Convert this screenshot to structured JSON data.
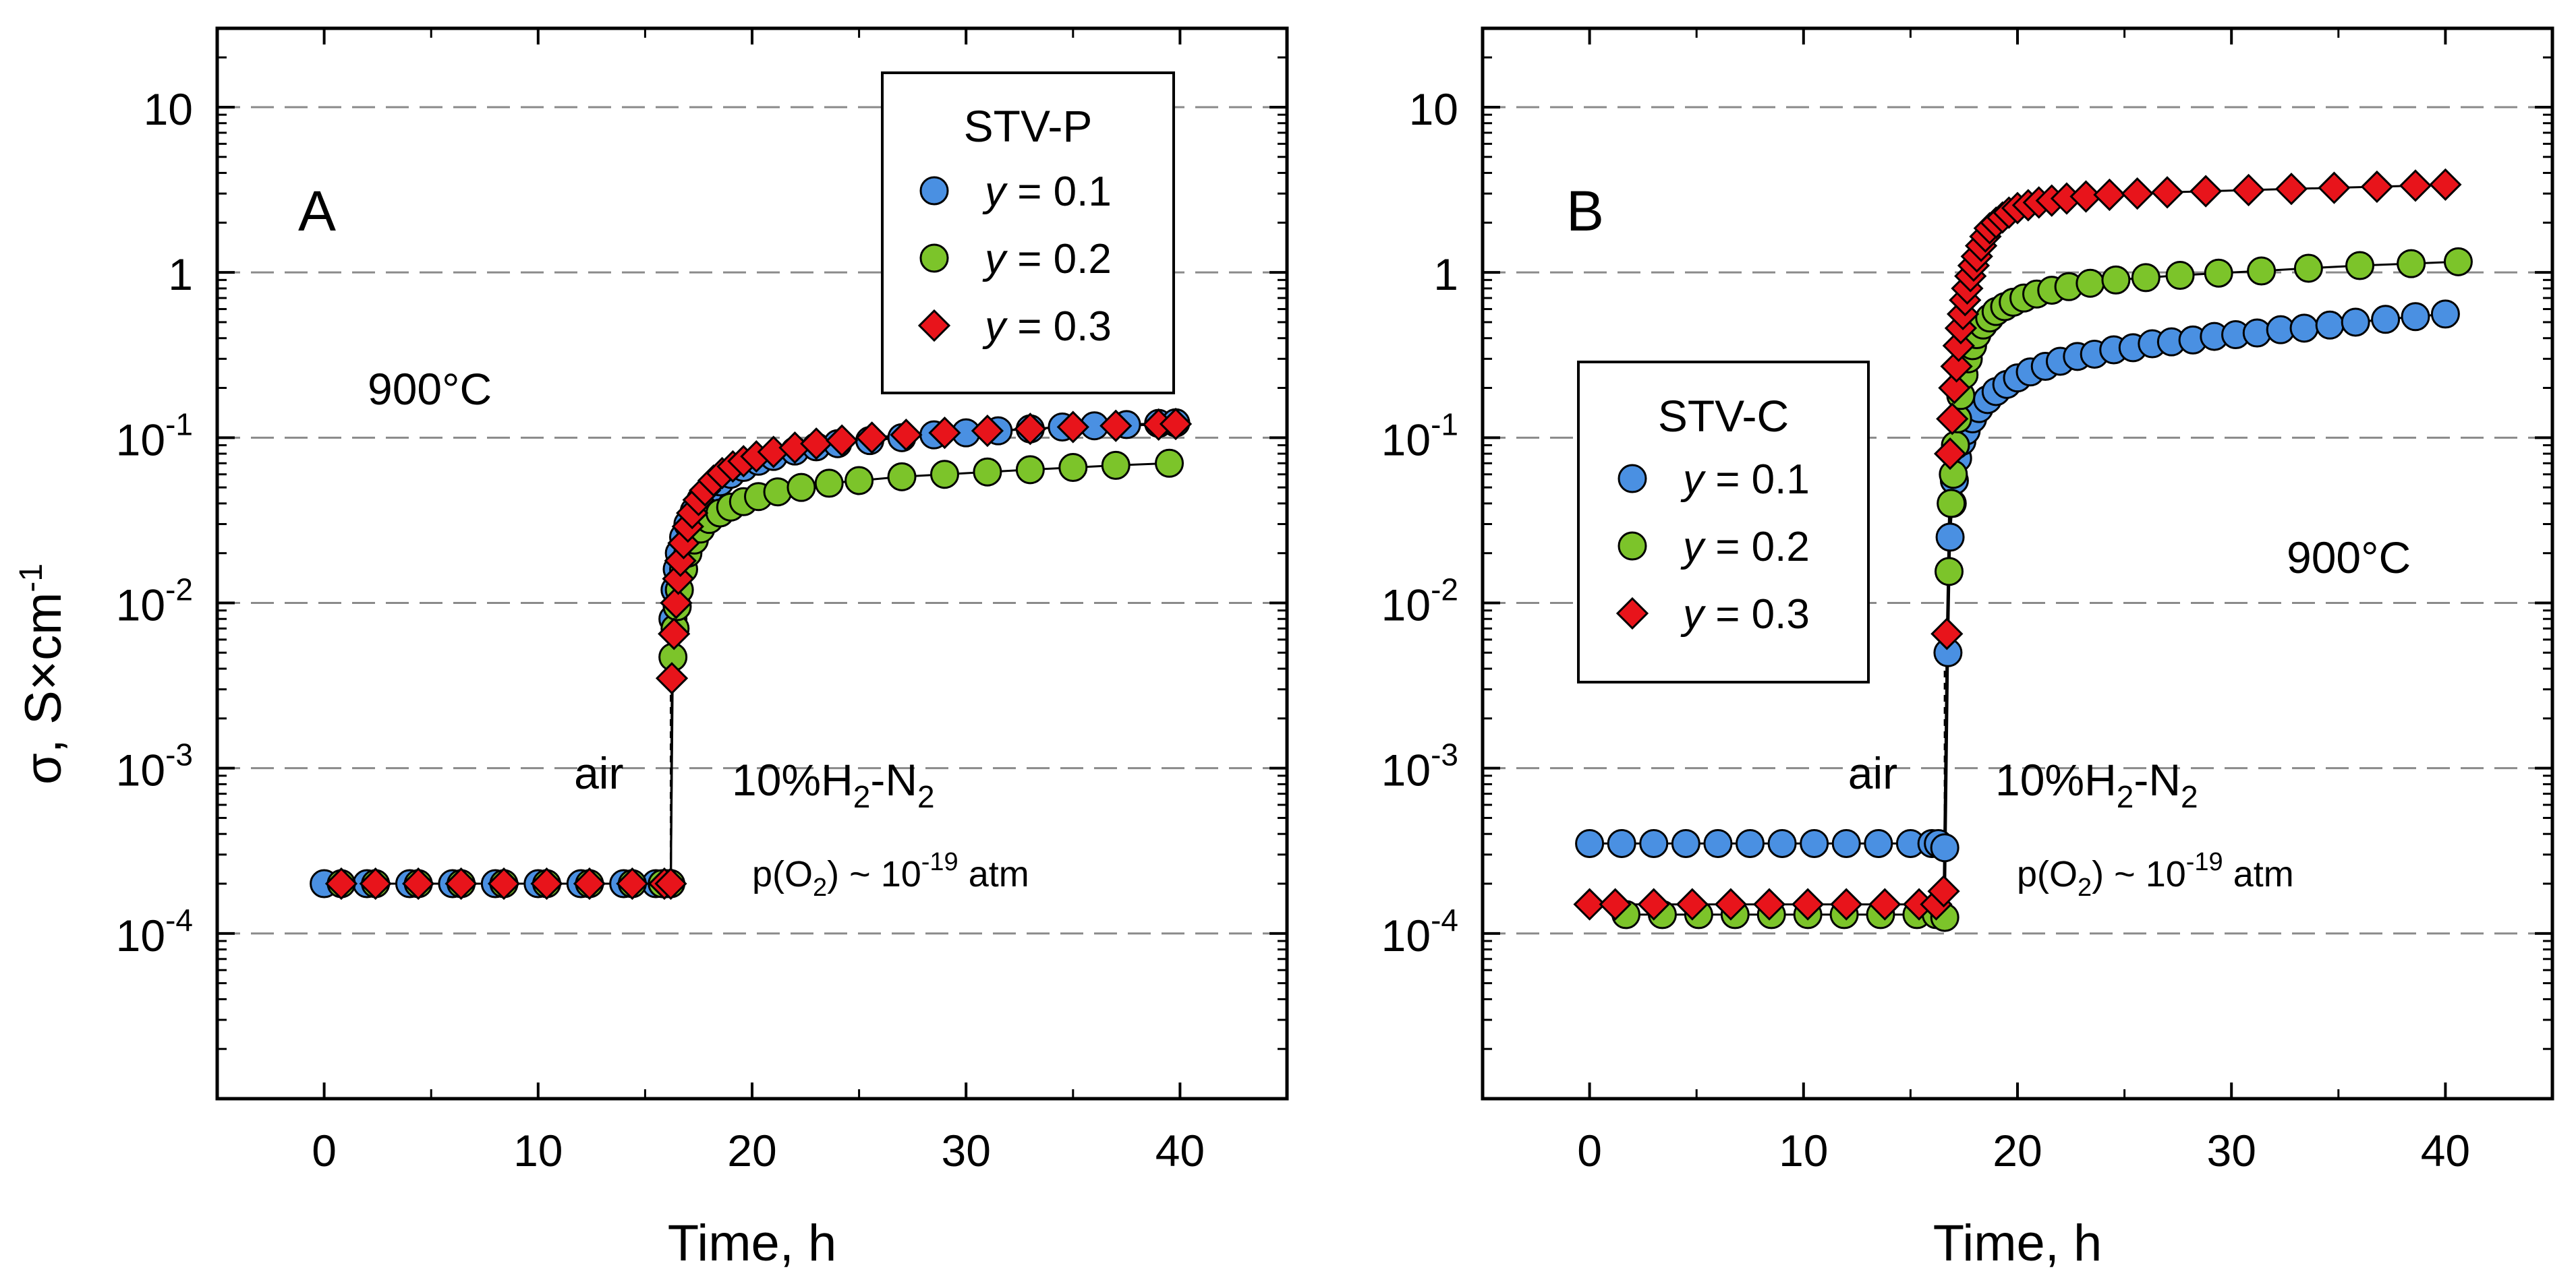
{
  "y_axis_title": "σ, S×cm",
  "y_axis_title_sup": "-1",
  "chart_data": [
    {
      "type": "scatter",
      "panel_label": "A",
      "temperature": "900°C",
      "xlabel": "Time, h",
      "ylabel": "σ, S×cm-1",
      "yscale": "log",
      "xlim": [
        -5,
        45
      ],
      "ylim": [
        1e-05,
        30
      ],
      "x_ticks": [
        "0",
        "10",
        "20",
        "30",
        "40"
      ],
      "y_ticks": [
        {
          "base": "10",
          "exp": "-4"
        },
        {
          "base": "10",
          "exp": "-3"
        },
        {
          "base": "10",
          "exp": "-2"
        },
        {
          "base": "10",
          "exp": "-1"
        },
        {
          "base": "1",
          "exp": ""
        },
        {
          "base": "10",
          "exp": ""
        }
      ],
      "gridlines": "horizontal dashed at decades",
      "switch_time": 16.2,
      "switch_annotations": {
        "left": "air",
        "right_main": "10%H",
        "right_sub1": "2",
        "right_mid": "-N",
        "right_sub2": "2",
        "po2_main": "p(O",
        "po2_sub": "2",
        "po2_mid": ") ~ 10",
        "po2_sup": "-19",
        "po2_end": " atm"
      },
      "legend": {
        "title": "STV-P",
        "entries": [
          {
            "y_italic": "y",
            "label": " = 0.1",
            "marker": "circle",
            "color": "#4a90e2"
          },
          {
            "y_italic": "y",
            "label": " = 0.2",
            "marker": "circle",
            "color": "#7cc42a"
          },
          {
            "y_italic": "y",
            "label": " = 0.3",
            "marker": "diamond",
            "color": "#e8141b"
          }
        ]
      },
      "series": [
        {
          "name": "y = 0.1",
          "marker": "circle",
          "color": "#4a90e2",
          "x": [
            0,
            2,
            4,
            6,
            8,
            10,
            12,
            14,
            15.5,
            16.0,
            16.2,
            16.3,
            16.4,
            16.5,
            16.6,
            16.8,
            17.0,
            17.3,
            17.6,
            18.0,
            18.5,
            19.0,
            19.6,
            20.3,
            21,
            22,
            23,
            24,
            25.5,
            27,
            28.5,
            30,
            31.5,
            33,
            34.5,
            36,
            37.5,
            39,
            39.8
          ],
          "y": [
            0.0002,
            0.0002,
            0.0002,
            0.0002,
            0.0002,
            0.0002,
            0.0002,
            0.0002,
            0.0002,
            0.0002,
            0.0002,
            0.008,
            0.012,
            0.016,
            0.02,
            0.025,
            0.03,
            0.036,
            0.042,
            0.048,
            0.054,
            0.06,
            0.066,
            0.072,
            0.077,
            0.083,
            0.088,
            0.092,
            0.096,
            0.1,
            0.104,
            0.107,
            0.11,
            0.113,
            0.116,
            0.118,
            0.12,
            0.122,
            0.123
          ]
        },
        {
          "name": "y = 0.2",
          "marker": "circle",
          "color": "#7cc42a",
          "x": [
            0.8,
            2.4,
            4.4,
            6.4,
            8.4,
            10.4,
            12.4,
            14.4,
            15.8,
            16.2,
            16.3,
            16.4,
            16.5,
            16.6,
            16.8,
            17.0,
            17.3,
            17.6,
            18.0,
            18.5,
            19.0,
            19.6,
            20.3,
            21.2,
            22.3,
            23.6,
            25,
            27,
            29,
            31,
            33,
            35,
            37,
            39.5
          ],
          "y": [
            0.0002,
            0.0002,
            0.0002,
            0.0002,
            0.0002,
            0.0002,
            0.0002,
            0.0002,
            0.0002,
            0.0002,
            0.0047,
            0.007,
            0.0095,
            0.012,
            0.016,
            0.02,
            0.024,
            0.028,
            0.032,
            0.035,
            0.038,
            0.041,
            0.044,
            0.047,
            0.05,
            0.053,
            0.055,
            0.058,
            0.06,
            0.062,
            0.064,
            0.066,
            0.068,
            0.07
          ]
        },
        {
          "name": "y = 0.3",
          "marker": "diamond",
          "color": "#e8141b",
          "x": [
            0.8,
            2.4,
            4.4,
            6.4,
            8.4,
            10.4,
            12.4,
            14.4,
            15.9,
            16.2,
            16.25,
            16.35,
            16.45,
            16.55,
            16.65,
            16.8,
            17.0,
            17.2,
            17.5,
            17.8,
            18.2,
            18.6,
            19.1,
            19.6,
            20.2,
            21,
            22,
            23,
            24.2,
            25.6,
            27.2,
            29,
            31,
            33,
            35,
            37,
            39,
            39.8
          ],
          "y": [
            0.0002,
            0.0002,
            0.0002,
            0.0002,
            0.0002,
            0.0002,
            0.0002,
            0.0002,
            0.0002,
            0.0002,
            0.0035,
            0.0065,
            0.01,
            0.014,
            0.018,
            0.023,
            0.029,
            0.035,
            0.042,
            0.048,
            0.055,
            0.061,
            0.067,
            0.072,
            0.077,
            0.082,
            0.087,
            0.092,
            0.096,
            0.1,
            0.104,
            0.107,
            0.11,
            0.113,
            0.116,
            0.118,
            0.12,
            0.121
          ]
        }
      ]
    },
    {
      "type": "scatter",
      "panel_label": "B",
      "temperature": "900°C",
      "xlabel": "Time, h",
      "ylabel": "σ, S×cm-1",
      "yscale": "log",
      "xlim": [
        -5,
        45
      ],
      "ylim": [
        1e-05,
        30
      ],
      "x_ticks": [
        "0",
        "10",
        "20",
        "30",
        "40"
      ],
      "y_ticks": [
        {
          "base": "10",
          "exp": "-4"
        },
        {
          "base": "10",
          "exp": "-3"
        },
        {
          "base": "10",
          "exp": "-2"
        },
        {
          "base": "10",
          "exp": "-1"
        },
        {
          "base": "1",
          "exp": ""
        },
        {
          "base": "10",
          "exp": ""
        }
      ],
      "gridlines": "horizontal dashed at decades",
      "switch_time": 16.6,
      "switch_annotations": {
        "left": "air",
        "right_main": "10%H",
        "right_sub1": "2",
        "right_mid": "-N",
        "right_sub2": "2",
        "po2_main": "p(O",
        "po2_sub": "2",
        "po2_mid": ") ~ 10",
        "po2_sup": "-19",
        "po2_end": " atm"
      },
      "legend": {
        "title": "STV-C",
        "entries": [
          {
            "y_italic": "y",
            "label": " = 0.1",
            "marker": "circle",
            "color": "#4a90e2"
          },
          {
            "y_italic": "y",
            "label": " = 0.2",
            "marker": "circle",
            "color": "#7cc42a"
          },
          {
            "y_italic": "y",
            "label": " = 0.3",
            "marker": "diamond",
            "color": "#e8141b"
          }
        ]
      },
      "series": [
        {
          "name": "y = 0.1",
          "marker": "circle",
          "color": "#4a90e2",
          "x": [
            0,
            1.5,
            3,
            4.5,
            6,
            7.5,
            9,
            10.5,
            12,
            13.5,
            15,
            16,
            16.3,
            16.6,
            16.75,
            16.85,
            16.95,
            17.05,
            17.2,
            17.4,
            17.6,
            17.9,
            18.2,
            18.6,
            19.0,
            19.5,
            20,
            20.6,
            21.3,
            22,
            22.8,
            23.6,
            24.5,
            25.4,
            26.3,
            27.2,
            28.2,
            29.2,
            30.2,
            31.2,
            32.3,
            33.4,
            34.6,
            35.8,
            37.2,
            38.6,
            40
          ],
          "y": [
            0.00035,
            0.00035,
            0.00035,
            0.00035,
            0.00035,
            0.00035,
            0.00035,
            0.00035,
            0.00035,
            0.00035,
            0.00035,
            0.00035,
            0.00035,
            0.00033,
            0.005,
            0.025,
            0.04,
            0.055,
            0.075,
            0.095,
            0.11,
            0.13,
            0.15,
            0.17,
            0.19,
            0.21,
            0.23,
            0.25,
            0.27,
            0.29,
            0.31,
            0.32,
            0.34,
            0.35,
            0.37,
            0.38,
            0.39,
            0.41,
            0.42,
            0.43,
            0.45,
            0.46,
            0.48,
            0.5,
            0.52,
            0.54,
            0.56
          ]
        },
        {
          "name": "y = 0.2",
          "marker": "circle",
          "color": "#7cc42a",
          "x": [
            1.7,
            3.4,
            5.1,
            6.8,
            8.5,
            10.2,
            11.9,
            13.6,
            15.3,
            16.2,
            16.6,
            16.8,
            16.9,
            17.0,
            17.1,
            17.2,
            17.35,
            17.5,
            17.7,
            17.9,
            18.1,
            18.4,
            18.7,
            19.0,
            19.4,
            19.8,
            20.3,
            20.9,
            21.6,
            22.4,
            23.4,
            24.6,
            26,
            27.6,
            29.4,
            31.4,
            33.6,
            36,
            38.4,
            40.6
          ],
          "y": [
            0.00013,
            0.00013,
            0.00013,
            0.00013,
            0.00013,
            0.00013,
            0.00013,
            0.00013,
            0.00013,
            0.00013,
            0.000125,
            0.0155,
            0.04,
            0.06,
            0.09,
            0.13,
            0.18,
            0.24,
            0.3,
            0.36,
            0.42,
            0.48,
            0.53,
            0.58,
            0.62,
            0.66,
            0.7,
            0.74,
            0.78,
            0.82,
            0.86,
            0.9,
            0.93,
            0.96,
            0.99,
            1.02,
            1.06,
            1.1,
            1.13,
            1.16
          ]
        },
        {
          "name": "y = 0.3",
          "marker": "diamond",
          "color": "#e8141b",
          "x": [
            0,
            1.2,
            3,
            4.8,
            6.6,
            8.4,
            10.2,
            12,
            13.8,
            15.4,
            16.2,
            16.55,
            16.7,
            16.85,
            16.95,
            17.05,
            17.15,
            17.25,
            17.35,
            17.45,
            17.55,
            17.65,
            17.8,
            17.95,
            18.1,
            18.3,
            18.5,
            18.7,
            19.0,
            19.3,
            19.6,
            20,
            20.5,
            21,
            21.6,
            22.3,
            23.2,
            24.3,
            25.6,
            27,
            28.8,
            30.8,
            32.8,
            34.8,
            36.8,
            38.6,
            40
          ],
          "y": [
            0.00015,
            0.00015,
            0.00015,
            0.00015,
            0.00015,
            0.00015,
            0.00015,
            0.00015,
            0.00015,
            0.00015,
            0.00015,
            0.00018,
            0.0065,
            0.08,
            0.13,
            0.2,
            0.27,
            0.36,
            0.46,
            0.56,
            0.68,
            0.8,
            0.95,
            1.1,
            1.25,
            1.45,
            1.65,
            1.85,
            2.0,
            2.15,
            2.3,
            2.45,
            2.55,
            2.65,
            2.72,
            2.8,
            2.88,
            2.95,
            3.0,
            3.05,
            3.1,
            3.15,
            3.2,
            3.25,
            3.3,
            3.35,
            3.4
          ]
        }
      ]
    }
  ]
}
